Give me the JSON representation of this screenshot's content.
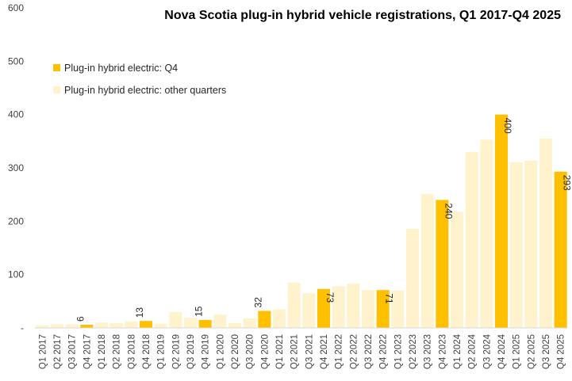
{
  "chart_data": {
    "type": "bar",
    "title": "Nova Scotia plug-in hybrid vehicle registrations, Q1 2017-Q4 2025",
    "xlabel": "",
    "ylabel": "",
    "ylim": [
      0,
      600
    ],
    "yticks": [
      0,
      100,
      200,
      300,
      400,
      500,
      600
    ],
    "yticks_labels": [
      "-",
      "100",
      "200",
      "300",
      "400",
      "500",
      "600"
    ],
    "legend_position": "top-left",
    "colors": {
      "q4": "#FFC000",
      "other": "#FFF2CC"
    },
    "series": [
      {
        "name": "Plug-in hybrid electric: Q4",
        "key": "q4"
      },
      {
        "name": "Plug-in hybrid electric: other quarters",
        "key": "other"
      }
    ],
    "categories": [
      "Q1 2017",
      "Q2 2017",
      "Q3 2017",
      "Q4 2017",
      "Q1 2018",
      "Q2 2018",
      "Q3 2018",
      "Q4 2018",
      "Q1 2019",
      "Q2 2019",
      "Q3 2019",
      "Q4 2019",
      "Q1 2020",
      "Q2 2020",
      "Q3 2020",
      "Q4 2020",
      "Q1 2021",
      "Q2 2021",
      "Q3 2021",
      "Q4 2021",
      "Q1 2022",
      "Q2 2022",
      "Q3 2022",
      "Q4 2022",
      "Q1 2023",
      "Q2 2023",
      "Q3 2023",
      "Q4 2023",
      "Q1 2024",
      "Q2 2024",
      "Q3 2024",
      "Q4 2024",
      "Q1 2025",
      "Q2 2025",
      "Q3 2025",
      "Q4 2025"
    ],
    "values": [
      5,
      7,
      7,
      6,
      10,
      9,
      12,
      13,
      8,
      30,
      19,
      15,
      25,
      9,
      18,
      32,
      35,
      85,
      65,
      73,
      78,
      83,
      71,
      71,
      70,
      186,
      251,
      240,
      218,
      330,
      353,
      400,
      311,
      314,
      355,
      293
    ],
    "data_labels": {
      "Q4 2017": "6",
      "Q4 2018": "13",
      "Q4 2019": "15",
      "Q4 2020": "32",
      "Q4 2021": "73",
      "Q4 2022": "71",
      "Q4 2023": "240",
      "Q4 2024": "400",
      "Q4 2025": "293"
    }
  }
}
